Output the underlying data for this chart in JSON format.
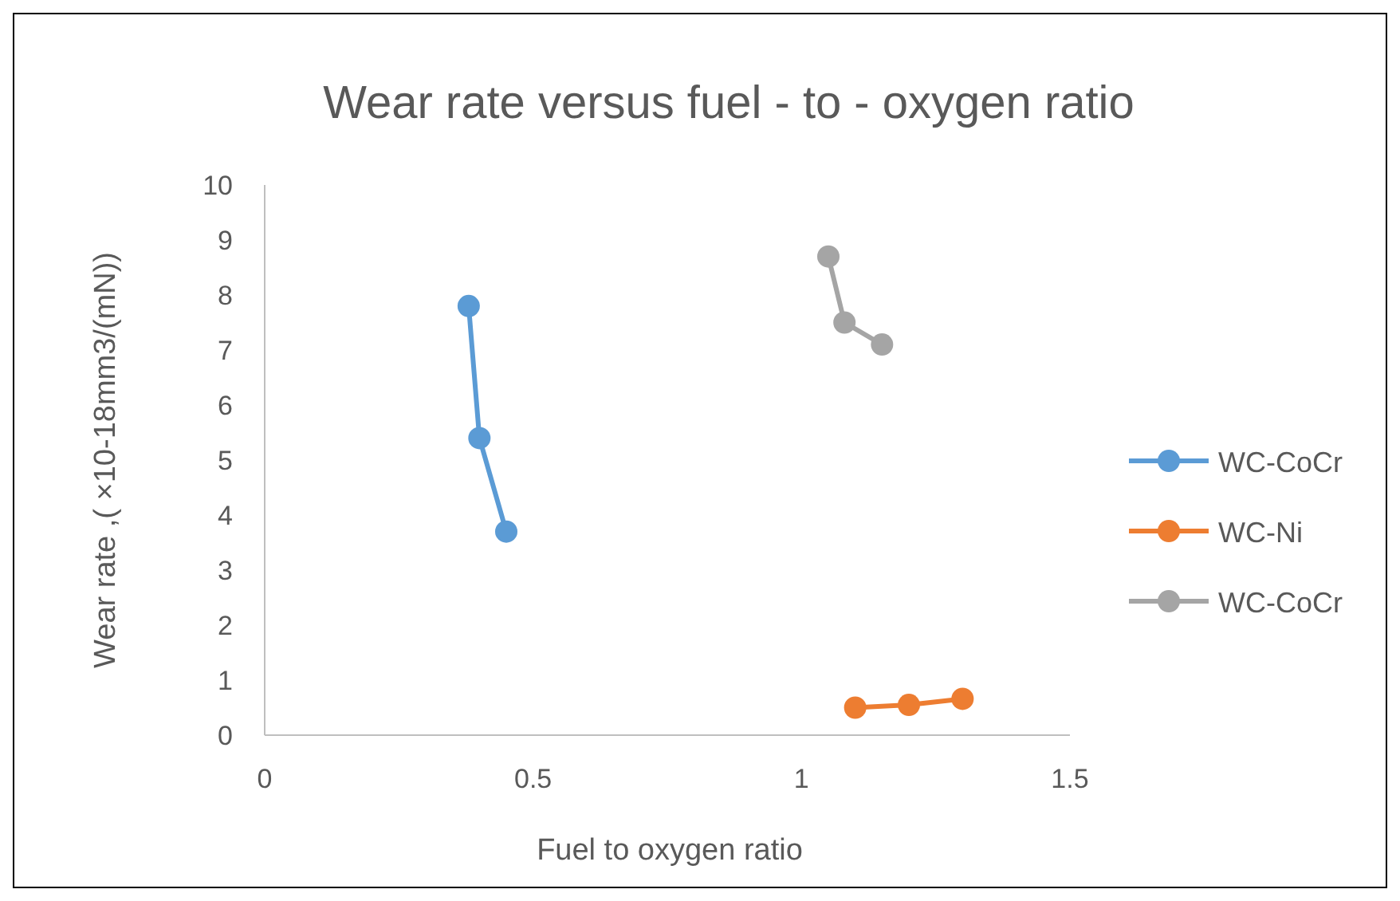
{
  "chart_data": {
    "type": "line",
    "title": "Wear rate versus fuel - to - oxygen ratio",
    "xlabel": "Fuel to oxygen ratio",
    "ylabel": "Wear rate ,( ×10-18mm3/(mN))",
    "xlim": [
      0,
      1.5
    ],
    "xticks": [
      0,
      0.5,
      1,
      1.5
    ],
    "ylim": [
      0,
      10
    ],
    "yticks": [
      0,
      1,
      2,
      3,
      4,
      5,
      6,
      7,
      8,
      9,
      10
    ],
    "grid": false,
    "legend": "right",
    "marker": "circle",
    "series": [
      {
        "name": "WC-CoCr",
        "color": "#5b9bd5",
        "x": [
          0.38,
          0.4,
          0.45
        ],
        "values": [
          7.8,
          5.4,
          3.7
        ]
      },
      {
        "name": "WC-Ni",
        "color": "#ed7d31",
        "x": [
          1.1,
          1.2,
          1.3
        ],
        "values": [
          0.5,
          0.55,
          0.66
        ]
      },
      {
        "name": "WC-CoCr",
        "color": "#a5a5a5",
        "x": [
          1.05,
          1.08,
          1.15
        ],
        "values": [
          8.7,
          7.5,
          7.1
        ]
      }
    ]
  }
}
